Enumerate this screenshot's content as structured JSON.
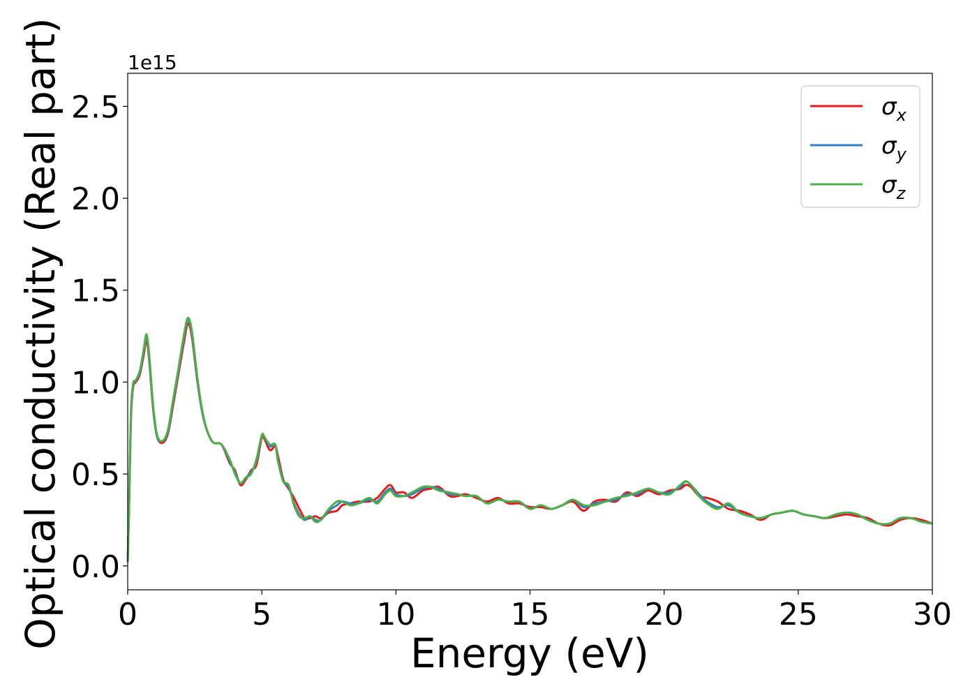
{
  "chart_data": {
    "type": "line",
    "xlabel": "Energy (eV)",
    "ylabel": "Optical conductivity (Real part)",
    "y_offset_text": "1e15",
    "xlim": [
      0,
      30
    ],
    "ylim": [
      -0.13,
      2.68
    ],
    "x_ticks": [
      0,
      5,
      10,
      15,
      20,
      25,
      30
    ],
    "x_tick_labels": [
      "0",
      "5",
      "10",
      "15",
      "20",
      "25",
      "30"
    ],
    "y_ticks": [
      0.0,
      0.5,
      1.0,
      1.5,
      2.0,
      2.5
    ],
    "y_tick_labels": [
      "0.0",
      "0.5",
      "1.0",
      "1.5",
      "2.0",
      "2.5"
    ],
    "grid": false,
    "legend_position": "top-right",
    "series": [
      {
        "name": "σx",
        "symbol": "σ",
        "subscript": "x",
        "color": "#e41a1c",
        "x": [
          0,
          0.05,
          0.12,
          0.2,
          0.3,
          0.45,
          0.6,
          0.7,
          0.8,
          0.95,
          1.1,
          1.3,
          1.5,
          1.7,
          1.9,
          2.1,
          2.25,
          2.4,
          2.6,
          2.8,
          3.0,
          3.2,
          3.5,
          3.8,
          4.0,
          4.2,
          4.4,
          4.6,
          4.8,
          5.0,
          5.1,
          5.3,
          5.5,
          5.6,
          5.8,
          6.0,
          6.2,
          6.4,
          6.6,
          6.8,
          7.0,
          7.2,
          7.5,
          7.8,
          8.0,
          8.3,
          8.6,
          9.0,
          9.3,
          9.6,
          9.8,
          10.0,
          10.3,
          10.6,
          11.0,
          11.3,
          11.6,
          12.0,
          12.3,
          12.6,
          13.0,
          13.4,
          13.8,
          14.2,
          14.6,
          15.0,
          15.4,
          15.8,
          16.2,
          16.6,
          17.0,
          17.4,
          17.8,
          18.2,
          18.6,
          19.0,
          19.4,
          19.8,
          20.2,
          20.6,
          20.8,
          21.0,
          21.3,
          21.6,
          22.0,
          22.4,
          22.8,
          23.2,
          23.6,
          24.0,
          24.4,
          24.8,
          25.2,
          25.6,
          26.0,
          26.4,
          26.8,
          27.2,
          27.6,
          28.0,
          28.4,
          28.8,
          29.2,
          29.6,
          30.0
        ],
        "y": [
          0.02,
          0.3,
          0.8,
          0.97,
          1.0,
          1.04,
          1.15,
          1.23,
          1.12,
          0.85,
          0.7,
          0.67,
          0.72,
          0.88,
          1.05,
          1.22,
          1.32,
          1.24,
          1.0,
          0.82,
          0.72,
          0.67,
          0.66,
          0.56,
          0.52,
          0.44,
          0.47,
          0.52,
          0.55,
          0.7,
          0.69,
          0.63,
          0.65,
          0.6,
          0.47,
          0.42,
          0.37,
          0.31,
          0.26,
          0.26,
          0.27,
          0.26,
          0.29,
          0.3,
          0.33,
          0.34,
          0.35,
          0.35,
          0.37,
          0.42,
          0.44,
          0.4,
          0.4,
          0.37,
          0.41,
          0.42,
          0.43,
          0.38,
          0.38,
          0.39,
          0.37,
          0.35,
          0.37,
          0.34,
          0.34,
          0.32,
          0.32,
          0.31,
          0.33,
          0.35,
          0.3,
          0.35,
          0.36,
          0.35,
          0.4,
          0.38,
          0.41,
          0.39,
          0.41,
          0.42,
          0.44,
          0.43,
          0.38,
          0.37,
          0.35,
          0.31,
          0.3,
          0.28,
          0.25,
          0.28,
          0.29,
          0.3,
          0.28,
          0.27,
          0.26,
          0.27,
          0.28,
          0.27,
          0.26,
          0.23,
          0.22,
          0.25,
          0.26,
          0.25,
          0.23
        ]
      },
      {
        "name": "σy",
        "symbol": "σ",
        "subscript": "y",
        "color": "#377eb8",
        "x": [
          0,
          0.05,
          0.12,
          0.2,
          0.3,
          0.45,
          0.6,
          0.7,
          0.8,
          0.95,
          1.1,
          1.3,
          1.5,
          1.7,
          1.9,
          2.1,
          2.25,
          2.4,
          2.6,
          2.8,
          3.0,
          3.2,
          3.5,
          3.8,
          4.0,
          4.2,
          4.4,
          4.6,
          4.8,
          5.0,
          5.1,
          5.3,
          5.5,
          5.6,
          5.8,
          6.0,
          6.2,
          6.4,
          6.6,
          6.8,
          7.0,
          7.2,
          7.5,
          7.8,
          8.0,
          8.3,
          8.6,
          9.0,
          9.3,
          9.6,
          9.8,
          10.0,
          10.3,
          10.6,
          11.0,
          11.3,
          11.6,
          12.0,
          12.3,
          12.6,
          13.0,
          13.4,
          13.8,
          14.2,
          14.6,
          15.0,
          15.4,
          15.8,
          16.2,
          16.6,
          17.0,
          17.4,
          17.8,
          18.2,
          18.6,
          19.0,
          19.4,
          19.8,
          20.2,
          20.6,
          20.8,
          21.0,
          21.3,
          21.6,
          22.0,
          22.4,
          22.8,
          23.2,
          23.6,
          24.0,
          24.4,
          24.8,
          25.2,
          25.6,
          26.0,
          26.4,
          26.8,
          27.2,
          27.6,
          28.0,
          28.4,
          28.8,
          29.2,
          29.6,
          30.0
        ],
        "y": [
          0.02,
          0.32,
          0.82,
          0.98,
          1.01,
          1.05,
          1.17,
          1.25,
          1.14,
          0.86,
          0.7,
          0.68,
          0.73,
          0.9,
          1.07,
          1.25,
          1.34,
          1.26,
          1.01,
          0.82,
          0.72,
          0.67,
          0.66,
          0.57,
          0.51,
          0.45,
          0.48,
          0.51,
          0.57,
          0.71,
          0.7,
          0.65,
          0.66,
          0.58,
          0.46,
          0.43,
          0.34,
          0.28,
          0.25,
          0.27,
          0.25,
          0.25,
          0.3,
          0.33,
          0.35,
          0.34,
          0.34,
          0.36,
          0.35,
          0.4,
          0.42,
          0.39,
          0.38,
          0.39,
          0.42,
          0.43,
          0.42,
          0.39,
          0.39,
          0.38,
          0.38,
          0.34,
          0.36,
          0.35,
          0.35,
          0.31,
          0.33,
          0.31,
          0.33,
          0.36,
          0.32,
          0.34,
          0.35,
          0.36,
          0.39,
          0.39,
          0.42,
          0.4,
          0.4,
          0.43,
          0.46,
          0.44,
          0.39,
          0.35,
          0.32,
          0.33,
          0.29,
          0.27,
          0.26,
          0.28,
          0.29,
          0.3,
          0.28,
          0.27,
          0.26,
          0.28,
          0.29,
          0.28,
          0.25,
          0.23,
          0.23,
          0.26,
          0.26,
          0.24,
          0.23
        ]
      },
      {
        "name": "σz",
        "symbol": "σ",
        "subscript": "z",
        "color": "#4daf4a",
        "x": [
          0,
          0.05,
          0.12,
          0.2,
          0.3,
          0.45,
          0.6,
          0.7,
          0.8,
          0.95,
          1.1,
          1.3,
          1.5,
          1.7,
          1.9,
          2.1,
          2.25,
          2.4,
          2.6,
          2.8,
          3.0,
          3.2,
          3.5,
          3.8,
          4.0,
          4.2,
          4.4,
          4.6,
          4.8,
          5.0,
          5.1,
          5.3,
          5.5,
          5.6,
          5.8,
          6.0,
          6.2,
          6.4,
          6.6,
          6.8,
          7.0,
          7.2,
          7.5,
          7.8,
          8.0,
          8.3,
          8.6,
          9.0,
          9.3,
          9.6,
          9.8,
          10.0,
          10.3,
          10.6,
          11.0,
          11.3,
          11.6,
          12.0,
          12.3,
          12.6,
          13.0,
          13.4,
          13.8,
          14.2,
          14.6,
          15.0,
          15.4,
          15.8,
          16.2,
          16.6,
          17.0,
          17.4,
          17.8,
          18.2,
          18.6,
          19.0,
          19.4,
          19.8,
          20.2,
          20.6,
          20.8,
          21.0,
          21.3,
          21.6,
          22.0,
          22.4,
          22.8,
          23.2,
          23.6,
          24.0,
          24.4,
          24.8,
          25.2,
          25.6,
          26.0,
          26.4,
          26.8,
          27.2,
          27.6,
          28.0,
          28.4,
          28.8,
          29.2,
          29.6,
          30.0
        ],
        "y": [
          0.02,
          0.33,
          0.83,
          0.99,
          1.01,
          1.06,
          1.18,
          1.26,
          1.15,
          0.87,
          0.71,
          0.68,
          0.74,
          0.91,
          1.08,
          1.26,
          1.35,
          1.27,
          1.02,
          0.83,
          0.72,
          0.67,
          0.66,
          0.58,
          0.5,
          0.45,
          0.48,
          0.5,
          0.58,
          0.71,
          0.7,
          0.66,
          0.66,
          0.57,
          0.46,
          0.44,
          0.33,
          0.27,
          0.26,
          0.27,
          0.24,
          0.25,
          0.31,
          0.35,
          0.35,
          0.33,
          0.34,
          0.37,
          0.34,
          0.39,
          0.41,
          0.38,
          0.38,
          0.4,
          0.43,
          0.43,
          0.41,
          0.4,
          0.39,
          0.38,
          0.38,
          0.34,
          0.36,
          0.35,
          0.35,
          0.31,
          0.33,
          0.31,
          0.33,
          0.36,
          0.33,
          0.33,
          0.35,
          0.37,
          0.38,
          0.4,
          0.42,
          0.4,
          0.39,
          0.44,
          0.46,
          0.44,
          0.38,
          0.34,
          0.31,
          0.34,
          0.29,
          0.27,
          0.26,
          0.28,
          0.29,
          0.3,
          0.28,
          0.27,
          0.26,
          0.28,
          0.29,
          0.28,
          0.25,
          0.23,
          0.23,
          0.26,
          0.26,
          0.24,
          0.23
        ]
      }
    ]
  }
}
